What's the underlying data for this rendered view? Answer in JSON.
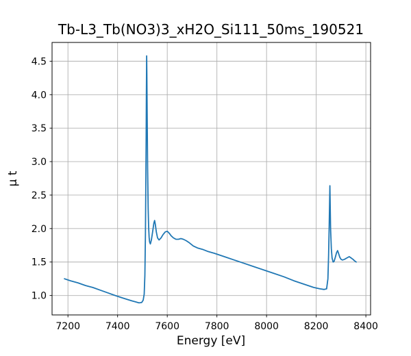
{
  "chart_data": {
    "type": "line",
    "title": "Tb-L3_Tb(NO3)3_xH2O_Si111_50ms_190521",
    "xlabel": "Energy [eV]",
    "ylabel": "μ t",
    "xlim": [
      7136,
      8419
    ],
    "ylim": [
      0.71,
      4.78
    ],
    "x_ticks": [
      7200,
      7400,
      7600,
      7800,
      8000,
      8200,
      8400
    ],
    "y_ticks": [
      1.0,
      1.5,
      2.0,
      2.5,
      3.0,
      3.5,
      4.0,
      4.5
    ],
    "grid": true,
    "legend": "none",
    "line_color": "#1f77b4",
    "grid_color": "#b0b0b0",
    "spine_color": "#000000",
    "background_color": "#ffffff",
    "series": [
      {
        "name": "mu_t",
        "points": [
          [
            7186,
            1.25
          ],
          [
            7210,
            1.22
          ],
          [
            7240,
            1.19
          ],
          [
            7270,
            1.15
          ],
          [
            7300,
            1.12
          ],
          [
            7330,
            1.08
          ],
          [
            7360,
            1.04
          ],
          [
            7390,
            1.0
          ],
          [
            7415,
            0.97
          ],
          [
            7440,
            0.94
          ],
          [
            7458,
            0.92
          ],
          [
            7472,
            0.905
          ],
          [
            7486,
            0.89
          ],
          [
            7497,
            0.895
          ],
          [
            7503,
            0.93
          ],
          [
            7507,
            1.02
          ],
          [
            7510,
            1.3
          ],
          [
            7512,
            1.9
          ],
          [
            7514,
            2.8
          ],
          [
            7515,
            3.4
          ],
          [
            7516,
            4.0
          ],
          [
            7517,
            4.58
          ],
          [
            7518,
            4.3
          ],
          [
            7519,
            3.75
          ],
          [
            7521,
            2.9
          ],
          [
            7523,
            2.3
          ],
          [
            7525,
            2.02
          ],
          [
            7527,
            1.87
          ],
          [
            7529,
            1.8
          ],
          [
            7532,
            1.77
          ],
          [
            7536,
            1.83
          ],
          [
            7541,
            1.95
          ],
          [
            7546,
            2.08
          ],
          [
            7549,
            2.12
          ],
          [
            7552,
            2.06
          ],
          [
            7556,
            1.95
          ],
          [
            7561,
            1.86
          ],
          [
            7567,
            1.83
          ],
          [
            7575,
            1.86
          ],
          [
            7583,
            1.91
          ],
          [
            7592,
            1.95
          ],
          [
            7600,
            1.96
          ],
          [
            7608,
            1.93
          ],
          [
            7616,
            1.89
          ],
          [
            7625,
            1.86
          ],
          [
            7635,
            1.84
          ],
          [
            7645,
            1.84
          ],
          [
            7655,
            1.85
          ],
          [
            7665,
            1.84
          ],
          [
            7676,
            1.82
          ],
          [
            7688,
            1.79
          ],
          [
            7705,
            1.74
          ],
          [
            7722,
            1.71
          ],
          [
            7742,
            1.69
          ],
          [
            7762,
            1.66
          ],
          [
            7790,
            1.63
          ],
          [
            7830,
            1.58
          ],
          [
            7870,
            1.53
          ],
          [
            7910,
            1.48
          ],
          [
            7950,
            1.43
          ],
          [
            7990,
            1.38
          ],
          [
            8030,
            1.33
          ],
          [
            8070,
            1.28
          ],
          [
            8110,
            1.22
          ],
          [
            8150,
            1.17
          ],
          [
            8190,
            1.12
          ],
          [
            8215,
            1.1
          ],
          [
            8232,
            1.09
          ],
          [
            8242,
            1.1
          ],
          [
            8247,
            1.25
          ],
          [
            8250,
            1.6
          ],
          [
            8252,
            2.0
          ],
          [
            8254,
            2.4
          ],
          [
            8255,
            2.64
          ],
          [
            8256,
            2.45
          ],
          [
            8258,
            2.0
          ],
          [
            8261,
            1.7
          ],
          [
            8264,
            1.56
          ],
          [
            8268,
            1.5
          ],
          [
            8272,
            1.51
          ],
          [
            8277,
            1.57
          ],
          [
            8282,
            1.64
          ],
          [
            8286,
            1.67
          ],
          [
            8290,
            1.63
          ],
          [
            8295,
            1.57
          ],
          [
            8300,
            1.54
          ],
          [
            8306,
            1.53
          ],
          [
            8314,
            1.54
          ],
          [
            8323,
            1.56
          ],
          [
            8333,
            1.58
          ],
          [
            8341,
            1.56
          ],
          [
            8348,
            1.54
          ],
          [
            8354,
            1.52
          ],
          [
            8361,
            1.5
          ]
        ]
      }
    ]
  }
}
